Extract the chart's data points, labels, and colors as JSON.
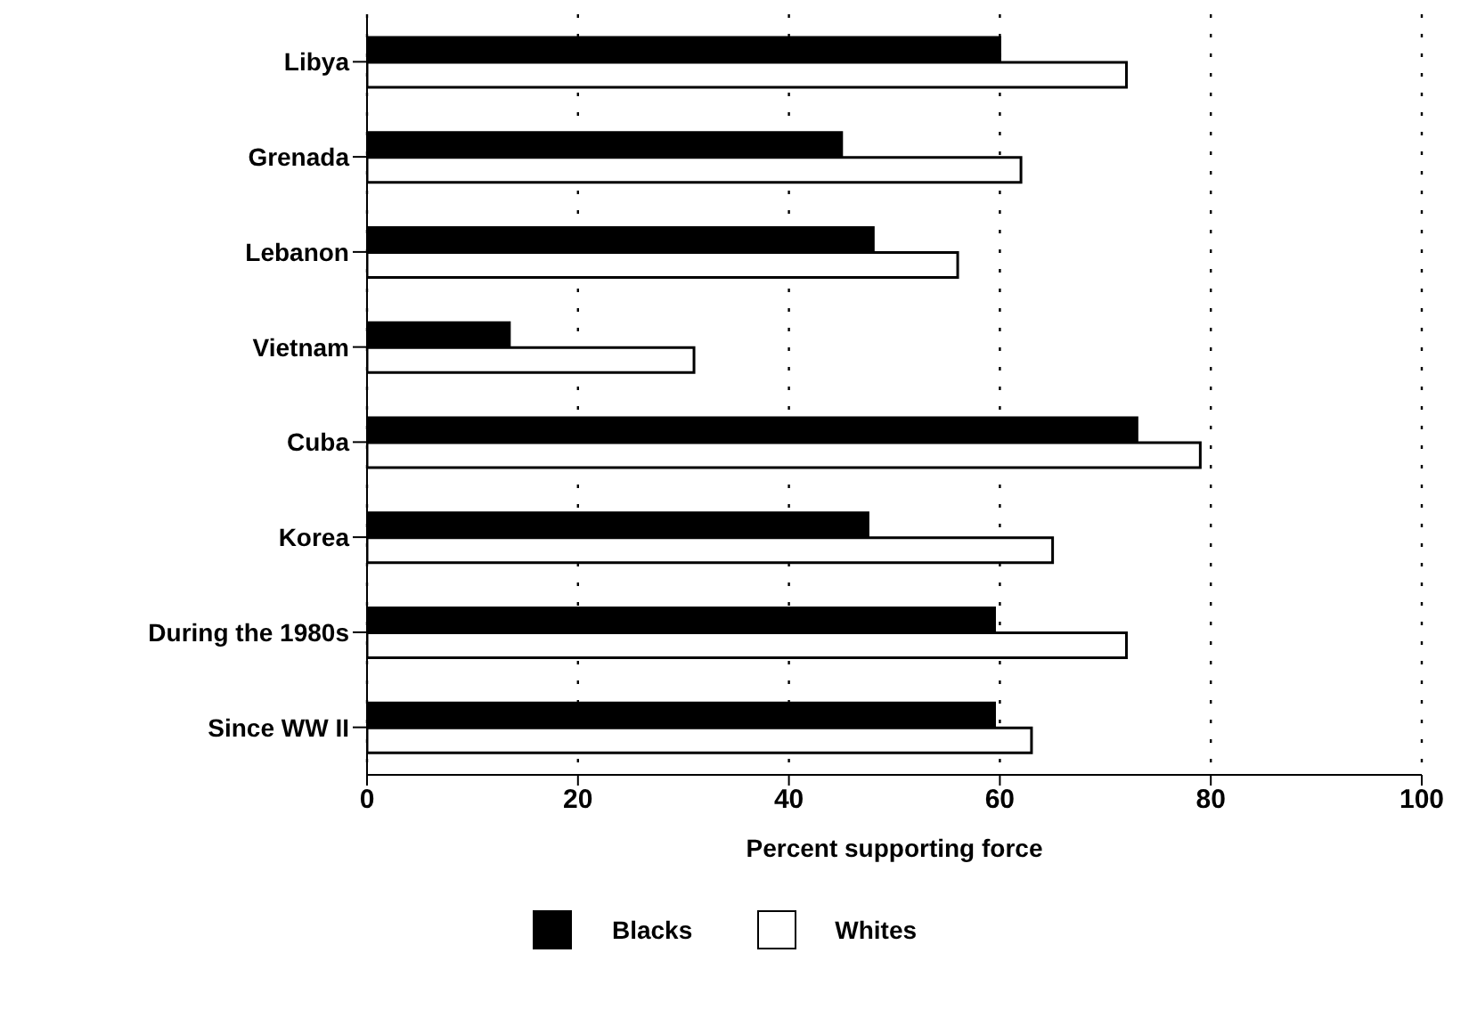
{
  "chart_data": {
    "type": "bar",
    "orientation": "horizontal",
    "xlabel": "Percent supporting force",
    "categories": [
      "Libya",
      "Grenada",
      "Lebanon",
      "Vietnam",
      "Cuba",
      "Korea",
      "During the 1980s",
      "Since WW II"
    ],
    "series": [
      {
        "name": "Blacks",
        "color": "#000000",
        "values": [
          60,
          45,
          48,
          13.5,
          73,
          47.5,
          59.5,
          59.5
        ]
      },
      {
        "name": "Whites",
        "color": "#ffffff",
        "values": [
          72,
          62,
          56,
          31,
          79,
          65,
          72,
          63
        ]
      }
    ],
    "xlim": [
      0,
      100
    ],
    "xticks": [
      0,
      20,
      40,
      60,
      80,
      100
    ],
    "grid": "x",
    "legend": "bottom"
  }
}
